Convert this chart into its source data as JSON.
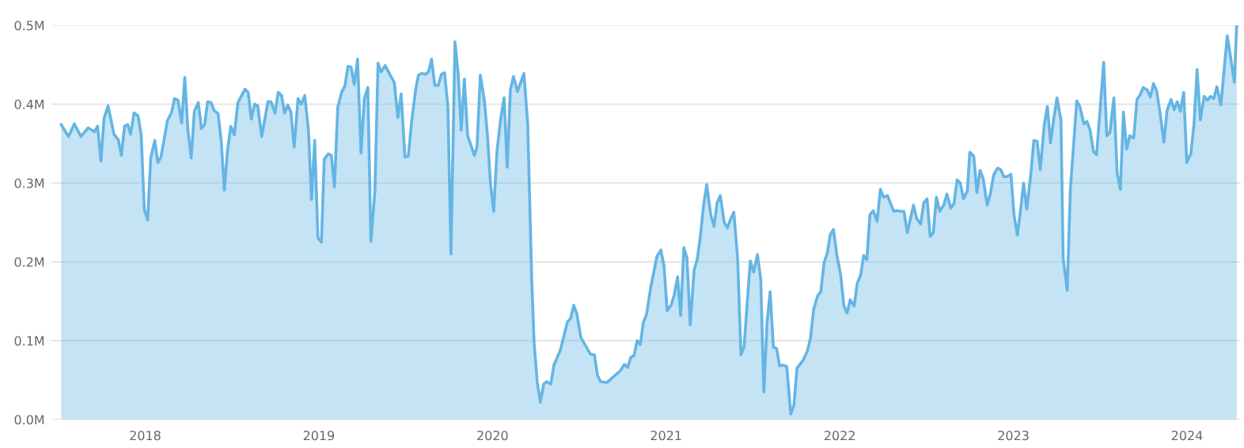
{
  "chart_data": {
    "type": "area",
    "xlim": [
      2017.46,
      2024.31
    ],
    "xticks": [
      2018,
      2019,
      2020,
      2021,
      2022,
      2023,
      2024
    ],
    "ylim": [
      0,
      0.5
    ],
    "yticks": [
      {
        "value": 0,
        "label": "0.0M"
      },
      {
        "value": 0.1,
        "label": "0.1M"
      },
      {
        "value": 0.2,
        "label": "0.2M"
      },
      {
        "value": 0.3,
        "label": "0.3M"
      },
      {
        "value": 0.4,
        "label": "0.4M"
      },
      {
        "value": 0.5,
        "label": "0.5M"
      }
    ],
    "grid": "y",
    "legend": false,
    "series": [
      {
        "color": "#64b5e4",
        "x": [
          2017.516,
          2017.558,
          2017.592,
          2017.63,
          2017.672,
          2017.708,
          2017.726,
          2017.745,
          2017.763,
          2017.786,
          2017.82,
          2017.845,
          2017.863,
          2017.881,
          2017.9,
          2017.916,
          2017.936,
          2017.959,
          2017.977,
          2017.995,
          2018.014,
          2018.032,
          2018.055,
          2018.073,
          2018.091,
          2018.128,
          2018.151,
          2018.169,
          2018.189,
          2018.21,
          2018.228,
          2018.246,
          2018.265,
          2018.283,
          2018.306,
          2018.324,
          2018.342,
          2018.36,
          2018.379,
          2018.397,
          2018.42,
          2018.438,
          2018.456,
          2018.474,
          2018.493,
          2018.513,
          2018.534,
          2018.575,
          2018.593,
          2018.611,
          2018.63,
          2018.648,
          2018.671,
          2018.707,
          2018.725,
          2018.748,
          2018.766,
          2018.785,
          2018.803,
          2018.821,
          2018.839,
          2018.858,
          2018.88,
          2018.899,
          2018.919,
          2018.94,
          2018.958,
          2018.976,
          2018.995,
          2019.015,
          2019.031,
          2019.054,
          2019.072,
          2019.09,
          2019.109,
          2019.131,
          2019.15,
          2019.168,
          2019.186,
          2019.204,
          2019.223,
          2019.243,
          2019.262,
          2019.282,
          2019.3,
          2019.323,
          2019.341,
          2019.359,
          2019.382,
          2019.435,
          2019.455,
          2019.474,
          2019.496,
          2019.515,
          2019.536,
          2019.558,
          2019.574,
          2019.592,
          2019.613,
          2019.632,
          2019.649,
          2019.668,
          2019.688,
          2019.706,
          2019.724,
          2019.743,
          2019.761,
          2019.784,
          2019.802,
          2019.82,
          2019.838,
          2019.857,
          2019.896,
          2019.911,
          2019.93,
          2019.953,
          2019.971,
          2019.989,
          2020.007,
          2020.026,
          2020.048,
          2020.067,
          2020.085,
          2020.103,
          2020.121,
          2020.144,
          2020.181,
          2020.203,
          2020.226,
          2020.24,
          2020.258,
          2020.276,
          2020.295,
          2020.313,
          2020.336,
          2020.354,
          2020.391,
          2020.432,
          2020.45,
          2020.468,
          2020.486,
          2020.509,
          2020.564,
          2020.587,
          2020.605,
          2020.623,
          2020.66,
          2020.696,
          2020.737,
          2020.76,
          2020.778,
          2020.797,
          2020.815,
          2020.833,
          2020.851,
          2020.869,
          2020.888,
          2020.911,
          2020.947,
          2020.97,
          2020.988,
          2021.006,
          2021.029,
          2021.047,
          2021.066,
          2021.084,
          2021.102,
          2021.12,
          2021.139,
          2021.161,
          2021.18,
          2021.198,
          2021.216,
          2021.234,
          2021.257,
          2021.276,
          2021.294,
          2021.312,
          2021.335,
          2021.353,
          2021.371,
          2021.39,
          2021.412,
          2021.431,
          2021.449,
          2021.467,
          2021.485,
          2021.504,
          2021.526,
          2021.545,
          2021.563,
          2021.581,
          2021.599,
          2021.618,
          2021.636,
          2021.654,
          2021.677,
          2021.695,
          2021.718,
          2021.736,
          2021.754,
          2021.791,
          2021.814,
          2021.832,
          2021.85,
          2021.873,
          2021.891,
          2021.91,
          2021.928,
          2021.946,
          2021.964,
          2021.983,
          2022.005,
          2022.024,
          2022.042,
          2022.06,
          2022.083,
          2022.101,
          2022.12,
          2022.138,
          2022.156,
          2022.174,
          2022.193,
          2022.215,
          2022.234,
          2022.252,
          2022.275,
          2022.311,
          2022.329,
          2022.348,
          2022.37,
          2022.389,
          2022.425,
          2022.443,
          2022.466,
          2022.484,
          2022.503,
          2022.521,
          2022.539,
          2022.557,
          2022.576,
          2022.599,
          2022.617,
          2022.64,
          2022.658,
          2022.676,
          2022.694,
          2022.713,
          2022.735,
          2022.749,
          2022.772,
          2022.79,
          2022.808,
          2022.827,
          2022.849,
          2022.868,
          2022.886,
          2022.909,
          2022.927,
          2022.945,
          2022.963,
          2022.986,
          2023.004,
          2023.023,
          2023.041,
          2023.059,
          2023.077,
          2023.1,
          2023.118,
          2023.137,
          2023.155,
          2023.178,
          2023.196,
          2023.214,
          2023.233,
          2023.251,
          2023.274,
          2023.287,
          2023.31,
          2023.328,
          2023.365,
          2023.383,
          2023.406,
          2023.424,
          2023.442,
          2023.461,
          2023.479,
          2023.497,
          2023.52,
          2023.538,
          2023.556,
          2023.579,
          2023.598,
          2023.616,
          2023.634,
          2023.652,
          2023.671,
          2023.693,
          2023.712,
          2023.73,
          2023.748,
          2023.771,
          2023.789,
          2023.807,
          2023.825,
          2023.844,
          2023.867,
          2023.885,
          2023.908,
          2023.926,
          2023.944,
          2023.962,
          2023.981,
          2023.999,
          2024.022,
          2024.04,
          2024.058,
          2024.077,
          2024.099,
          2024.118,
          2024.136,
          2024.154,
          2024.172,
          2024.195,
          2024.232,
          2024.273,
          2024.286
        ],
        "values": [
          0.374,
          0.359,
          0.375,
          0.359,
          0.37,
          0.365,
          0.372,
          0.328,
          0.382,
          0.398,
          0.362,
          0.355,
          0.335,
          0.372,
          0.374,
          0.362,
          0.389,
          0.385,
          0.361,
          0.266,
          0.253,
          0.332,
          0.354,
          0.326,
          0.333,
          0.379,
          0.389,
          0.407,
          0.405,
          0.376,
          0.434,
          0.367,
          0.332,
          0.391,
          0.402,
          0.369,
          0.374,
          0.403,
          0.402,
          0.392,
          0.388,
          0.353,
          0.291,
          0.341,
          0.372,
          0.361,
          0.402,
          0.419,
          0.415,
          0.381,
          0.4,
          0.398,
          0.359,
          0.403,
          0.403,
          0.389,
          0.415,
          0.411,
          0.389,
          0.399,
          0.39,
          0.346,
          0.407,
          0.4,
          0.411,
          0.367,
          0.279,
          0.354,
          0.23,
          0.225,
          0.33,
          0.337,
          0.335,
          0.295,
          0.396,
          0.415,
          0.423,
          0.448,
          0.447,
          0.425,
          0.457,
          0.338,
          0.407,
          0.421,
          0.226,
          0.29,
          0.452,
          0.441,
          0.449,
          0.427,
          0.383,
          0.413,
          0.333,
          0.334,
          0.381,
          0.419,
          0.437,
          0.439,
          0.438,
          0.441,
          0.457,
          0.424,
          0.424,
          0.438,
          0.44,
          0.398,
          0.21,
          0.479,
          0.44,
          0.367,
          0.432,
          0.36,
          0.335,
          0.346,
          0.437,
          0.405,
          0.361,
          0.298,
          0.264,
          0.341,
          0.382,
          0.408,
          0.32,
          0.418,
          0.435,
          0.416,
          0.439,
          0.375,
          0.178,
          0.097,
          0.047,
          0.022,
          0.045,
          0.048,
          0.045,
          0.069,
          0.088,
          0.124,
          0.128,
          0.145,
          0.134,
          0.104,
          0.083,
          0.082,
          0.056,
          0.048,
          0.047,
          0.054,
          0.062,
          0.07,
          0.066,
          0.079,
          0.081,
          0.1,
          0.095,
          0.123,
          0.134,
          0.167,
          0.207,
          0.215,
          0.195,
          0.138,
          0.145,
          0.158,
          0.181,
          0.132,
          0.218,
          0.205,
          0.12,
          0.189,
          0.204,
          0.234,
          0.272,
          0.298,
          0.26,
          0.245,
          0.275,
          0.284,
          0.25,
          0.243,
          0.254,
          0.263,
          0.204,
          0.082,
          0.092,
          0.148,
          0.201,
          0.187,
          0.209,
          0.178,
          0.035,
          0.122,
          0.162,
          0.092,
          0.09,
          0.068,
          0.069,
          0.067,
          0.007,
          0.018,
          0.065,
          0.076,
          0.087,
          0.104,
          0.14,
          0.157,
          0.162,
          0.199,
          0.211,
          0.235,
          0.241,
          0.209,
          0.184,
          0.144,
          0.135,
          0.152,
          0.144,
          0.173,
          0.183,
          0.208,
          0.203,
          0.26,
          0.265,
          0.251,
          0.292,
          0.282,
          0.284,
          0.264,
          0.265,
          0.264,
          0.264,
          0.237,
          0.272,
          0.255,
          0.248,
          0.275,
          0.28,
          0.232,
          0.237,
          0.282,
          0.264,
          0.272,
          0.286,
          0.268,
          0.274,
          0.304,
          0.3,
          0.28,
          0.29,
          0.339,
          0.334,
          0.288,
          0.316,
          0.305,
          0.272,
          0.287,
          0.31,
          0.319,
          0.317,
          0.308,
          0.308,
          0.311,
          0.259,
          0.234,
          0.265,
          0.3,
          0.267,
          0.31,
          0.354,
          0.353,
          0.317,
          0.374,
          0.397,
          0.351,
          0.382,
          0.408,
          0.38,
          0.204,
          0.164,
          0.291,
          0.404,
          0.397,
          0.375,
          0.378,
          0.367,
          0.34,
          0.336,
          0.386,
          0.453,
          0.36,
          0.364,
          0.408,
          0.312,
          0.292,
          0.39,
          0.343,
          0.36,
          0.357,
          0.406,
          0.412,
          0.421,
          0.418,
          0.409,
          0.426,
          0.417,
          0.39,
          0.352,
          0.392,
          0.406,
          0.393,
          0.403,
          0.391,
          0.415,
          0.326,
          0.337,
          0.374,
          0.444,
          0.38,
          0.41,
          0.405,
          0.41,
          0.407,
          0.422,
          0.399,
          0.487,
          0.428,
          0.5
        ]
      }
    ]
  }
}
